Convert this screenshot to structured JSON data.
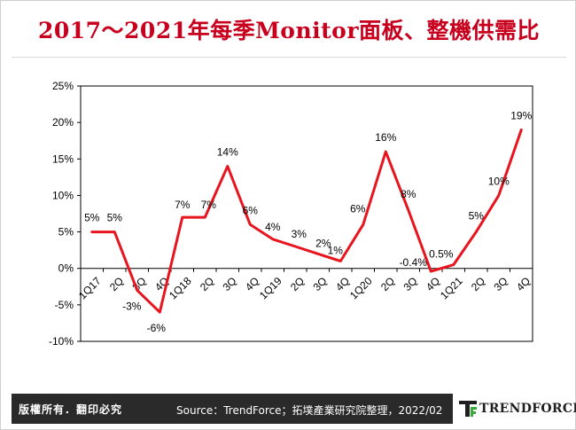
{
  "title": "2017～2021年每季Monitor面板、整機供需比",
  "footer": {
    "copyright": "版權所有．翻印必究",
    "source": "Source：TrendForce；拓墣產業研究院整理，2022/02",
    "logo_text": "TRENDFORCE"
  },
  "colors": {
    "title": "#c8001e",
    "line": "#e8141e",
    "axis": "#000000",
    "footer_bg": "#2a2a2a",
    "logo_green": "#3aa83a"
  },
  "chart_data": {
    "type": "line",
    "title": "",
    "xlabel": "",
    "ylabel": "",
    "ylim": [
      -10,
      25
    ],
    "yticks": [
      "25%",
      "20%",
      "15%",
      "10%",
      "5%",
      "0%",
      "-5%",
      "-10%"
    ],
    "categories": [
      "1Q17",
      "2Q",
      "3Q",
      "4Q",
      "1Q18",
      "2Q",
      "3Q",
      "4Q",
      "1Q19",
      "2Q",
      "3Q",
      "4Q",
      "1Q20",
      "2Q",
      "3Q",
      "4Q",
      "1Q21",
      "2Q",
      "3Q",
      "4Q"
    ],
    "series": [
      {
        "values": [
          5,
          5,
          -3,
          -6,
          7,
          7,
          14,
          6,
          4,
          3,
          2,
          1,
          6,
          16,
          8,
          -0.4,
          0.5,
          5,
          10,
          19
        ],
        "labels": [
          "5%",
          "5%",
          "-3%",
          "-6%",
          "7%",
          "7%",
          "14%",
          "6%",
          "4%",
          "3%",
          "2%",
          "1%",
          "6%",
          "16%",
          "8%",
          "-0.4%",
          "0.5%",
          "5%",
          "10%",
          "19%"
        ]
      }
    ],
    "grid": false,
    "legend": "none"
  }
}
